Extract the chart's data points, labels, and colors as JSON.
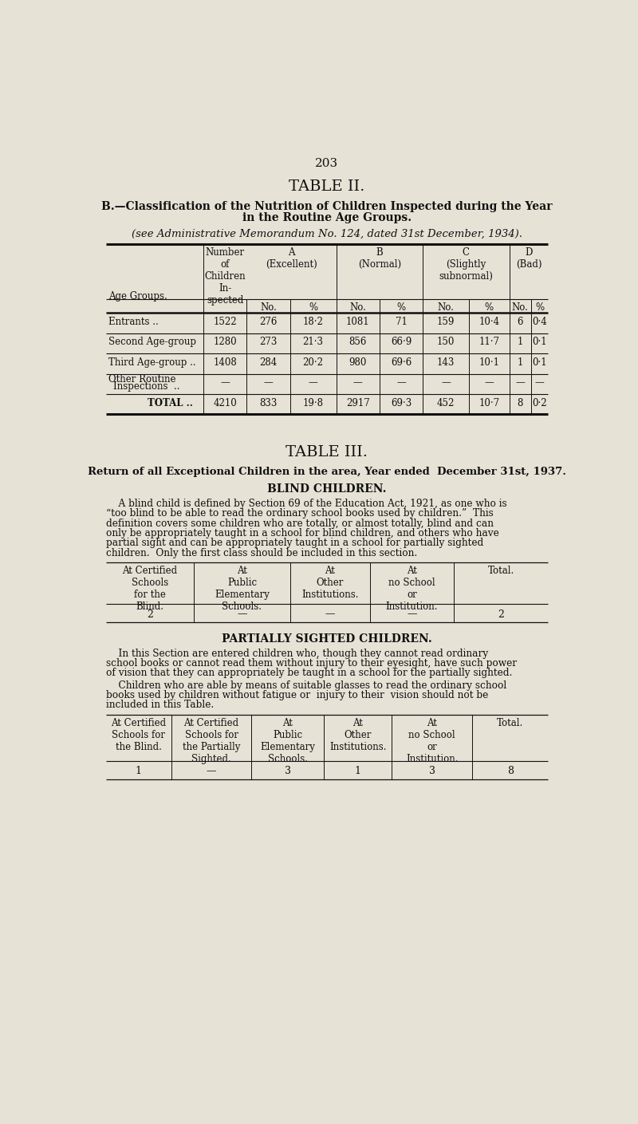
{
  "bg_color": "#e6e2d5",
  "page_number": "203",
  "table2_title": "TABLE II.",
  "table2_subtitle1": "B.—Classification of the Nutrition of Children Inspected during the Year",
  "table2_subtitle2": "in the Routine Age Groups.",
  "table2_note": "(see Administrative Memorandum No. 124, dated 31st December, 1934).",
  "table2_rows": [
    [
      "Entrants ..",
      "1522",
      "276",
      "18·2",
      "1081",
      "71",
      "159",
      "10·4",
      "6",
      "0·4"
    ],
    [
      "Second Age-group",
      "1280",
      "273",
      "21·3",
      "856",
      "66·9",
      "150",
      "11·7",
      "1",
      "0·1"
    ],
    [
      "Third Age-group ..",
      "1408",
      "284",
      "20·2",
      "980",
      "69·6",
      "143",
      "10·1",
      "1",
      "0·1"
    ],
    [
      "Other Routine\nInspections  ..",
      "—",
      "—",
      "—",
      "—",
      "—",
      "—",
      "—",
      "—",
      "—"
    ],
    [
      "TOTAL ..",
      "4210",
      "833",
      "19·8",
      "2917",
      "69·3",
      "452",
      "10·7",
      "8",
      "0·2"
    ]
  ],
  "table3_title": "TABLE III.",
  "table3_subtitle": "Return of all Exceptional Children in the area, Year ended  December 31st, 1937.",
  "blind_title": "BLIND CHILDREN.",
  "blind_para_lines": [
    "    A blind child is defined by Section 69 of the Education Act, 1921, as one who is",
    "“too blind to be able to read the ordinary school books used by children.”  This",
    "definition covers some children who are totally, or almost totally, blind and can",
    "only be appropriately taught in a school for blind children, and others who have",
    "partial sight and can be appropriately taught in a school for partially sighted",
    "children.  Only the first class should be included in this section."
  ],
  "blind_col_headers": [
    "At Certified\nSchools\nfor the\nBlind.",
    "At\nPublic\nElementary\nSchools.",
    "At\nOther\nInstitutions.",
    "At\nno School\nor\nInstitution.",
    "Total."
  ],
  "blind_row": [
    "2",
    "—",
    "—",
    "—",
    "2"
  ],
  "partial_title": "PARTIALLY SIGHTED CHILDREN.",
  "partial_para1_lines": [
    "    In this Section are entered children who, though they cannot read ordinary",
    "school books or cannot read them without injury to their eyesight, have such power",
    "of vision that they can appropriately be taught in a school for the partially sighted."
  ],
  "partial_para2_lines": [
    "    Children who are able by means of suitable glasses to read the ordinary school",
    "books used by children without fatigue or  injury to their  vision should not be",
    "included in this Table."
  ],
  "partial_col_headers": [
    "At Certified\nSchools for\nthe Blind.",
    "At Certified\nSchools for\nthe Partially\nSighted.",
    "At\nPublic\nElementary\nSchools.",
    "At\nOther\nInstitutions.",
    "At\nno School\nor\nInstitution.",
    "Total."
  ],
  "partial_row": [
    "1",
    "—",
    "3",
    "1",
    "3",
    "8"
  ]
}
